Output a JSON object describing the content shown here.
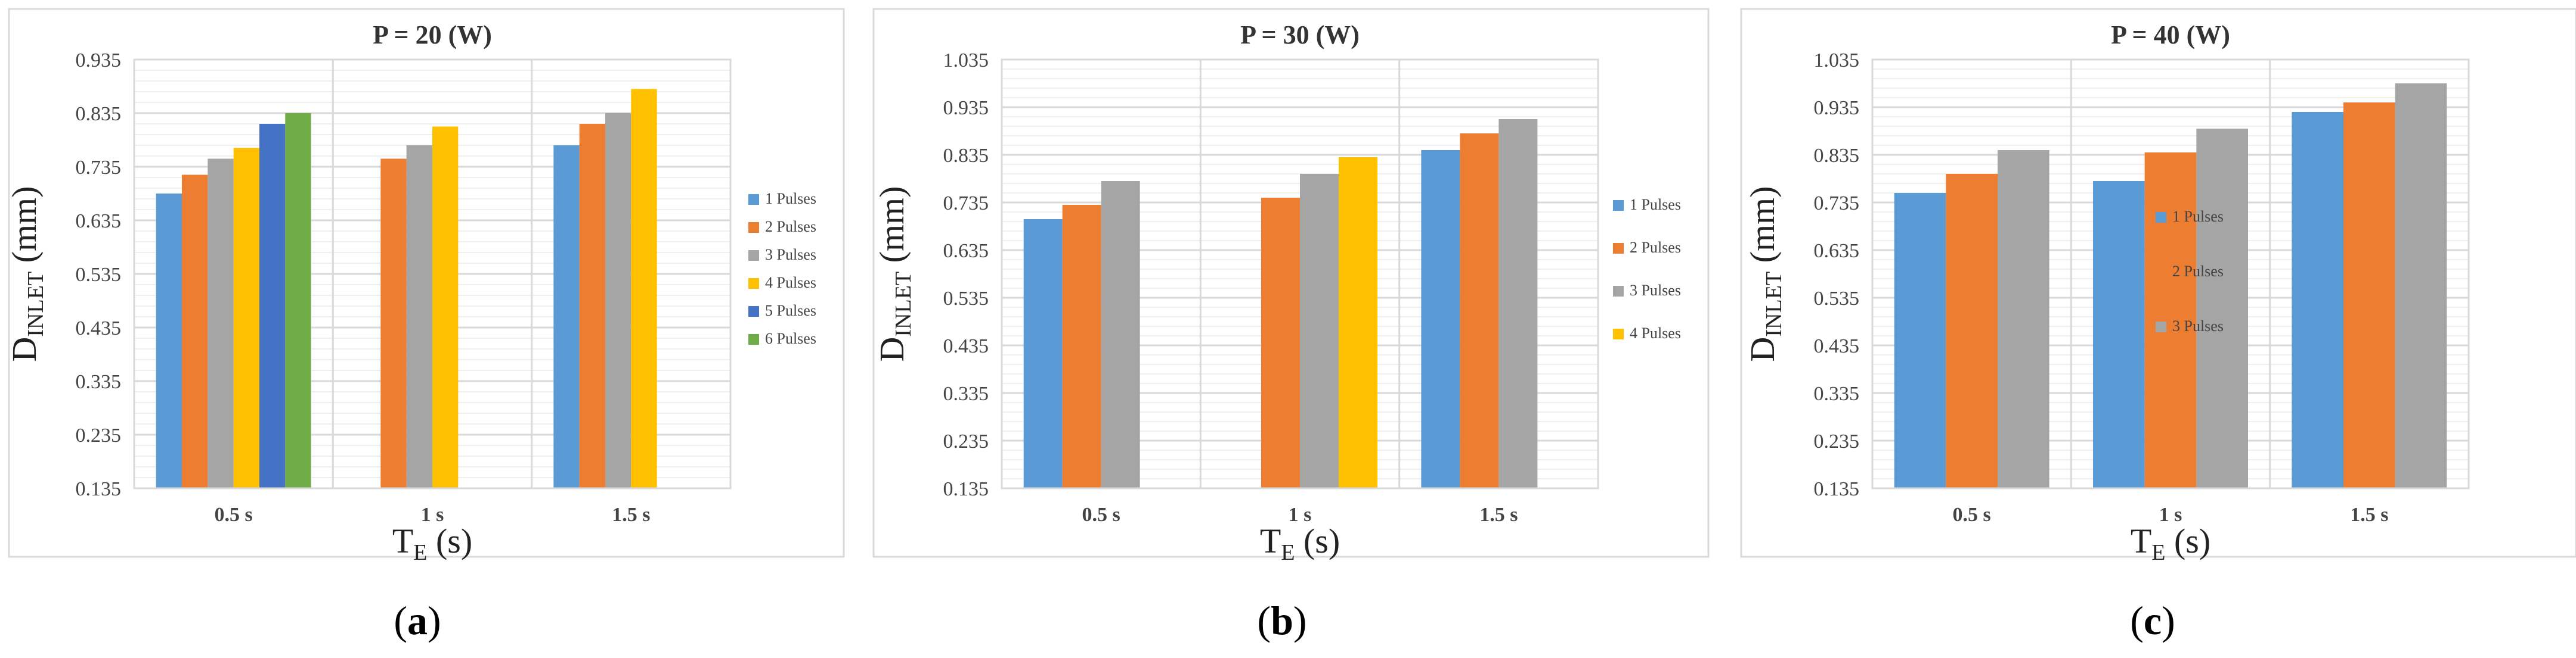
{
  "colors": {
    "series": [
      "#5b9bd5",
      "#ed7d31",
      "#a5a5a5",
      "#ffc000",
      "#4472c4",
      "#70ad47"
    ],
    "grid": "#d9d9d9",
    "axis_text": "#444444",
    "panel_border": "#d9d9d9"
  },
  "chart_data": [
    {
      "type": "bar",
      "title": "P = 20 (W)",
      "xlabel_main": "T",
      "xlabel_sub": "E",
      "xlabel_unit": " (s)",
      "ylabel_main": "D",
      "ylabel_sub": "INLET",
      "ylabel_unit": " (mm)",
      "categories": [
        "0.5 s",
        "1 s",
        "1.5 s"
      ],
      "ylim": [
        0.135,
        0.935
      ],
      "yticks": [
        "0.135",
        "0.235",
        "0.335",
        "0.435",
        "0.535",
        "0.635",
        "0.735",
        "0.835",
        "0.935"
      ],
      "grid": true,
      "legend": "right",
      "series": [
        {
          "name": "1 Pulses",
          "values": [
            0.685,
            null,
            0.775
          ]
        },
        {
          "name": "2 Pulses",
          "values": [
            0.72,
            0.75,
            0.815
          ]
        },
        {
          "name": "3 Pulses",
          "values": [
            0.75,
            0.775,
            0.835
          ]
        },
        {
          "name": "4 Pulses",
          "values": [
            0.77,
            0.81,
            0.88
          ]
        },
        {
          "name": "5 Pulses",
          "values": [
            0.815,
            null,
            null
          ]
        },
        {
          "name": "6 Pulses",
          "values": [
            0.835,
            null,
            null
          ]
        }
      ],
      "panel_label": "a"
    },
    {
      "type": "bar",
      "title": "P = 30 (W)",
      "xlabel_main": "T",
      "xlabel_sub": "E",
      "xlabel_unit": " (s)",
      "ylabel_main": "D",
      "ylabel_sub": "INLET",
      "ylabel_unit": " (mm)",
      "categories": [
        "0.5 s",
        "1 s",
        "1.5 s"
      ],
      "ylim": [
        0.135,
        1.035
      ],
      "yticks": [
        "0.135",
        "0.235",
        "0.335",
        "0.435",
        "0.535",
        "0.635",
        "0.735",
        "0.835",
        "0.935",
        "1.035"
      ],
      "grid": true,
      "legend": "right",
      "series": [
        {
          "name": "1 Pulses",
          "values": [
            0.7,
            null,
            0.845
          ]
        },
        {
          "name": "2 Pulses",
          "values": [
            0.73,
            0.745,
            0.88
          ]
        },
        {
          "name": "3 Pulses",
          "values": [
            0.78,
            0.795,
            0.91
          ]
        },
        {
          "name": "4 Pulses",
          "values": [
            null,
            0.83,
            null
          ]
        }
      ],
      "panel_label": "b"
    },
    {
      "type": "bar",
      "title": "P = 40 (W)",
      "xlabel_main": "T",
      "xlabel_sub": "E",
      "xlabel_unit": " (s)",
      "ylabel_main": "D",
      "ylabel_sub": "INLET",
      "ylabel_unit": " (mm)",
      "categories": [
        "0.5 s",
        "1 s",
        "1.5 s"
      ],
      "ylim": [
        0.135,
        1.035
      ],
      "yticks": [
        "0.135",
        "0.235",
        "0.335",
        "0.435",
        "0.535",
        "0.635",
        "0.735",
        "0.835",
        "0.935",
        "1.035"
      ],
      "grid": true,
      "legend": "right",
      "series": [
        {
          "name": "1 Pulses",
          "values": [
            0.755,
            0.78,
            0.925
          ]
        },
        {
          "name": "2 Pulses",
          "values": [
            0.795,
            0.84,
            0.945
          ]
        },
        {
          "name": "3 Pulses",
          "values": [
            0.845,
            0.89,
            0.985
          ]
        }
      ],
      "panel_label": "c"
    }
  ]
}
